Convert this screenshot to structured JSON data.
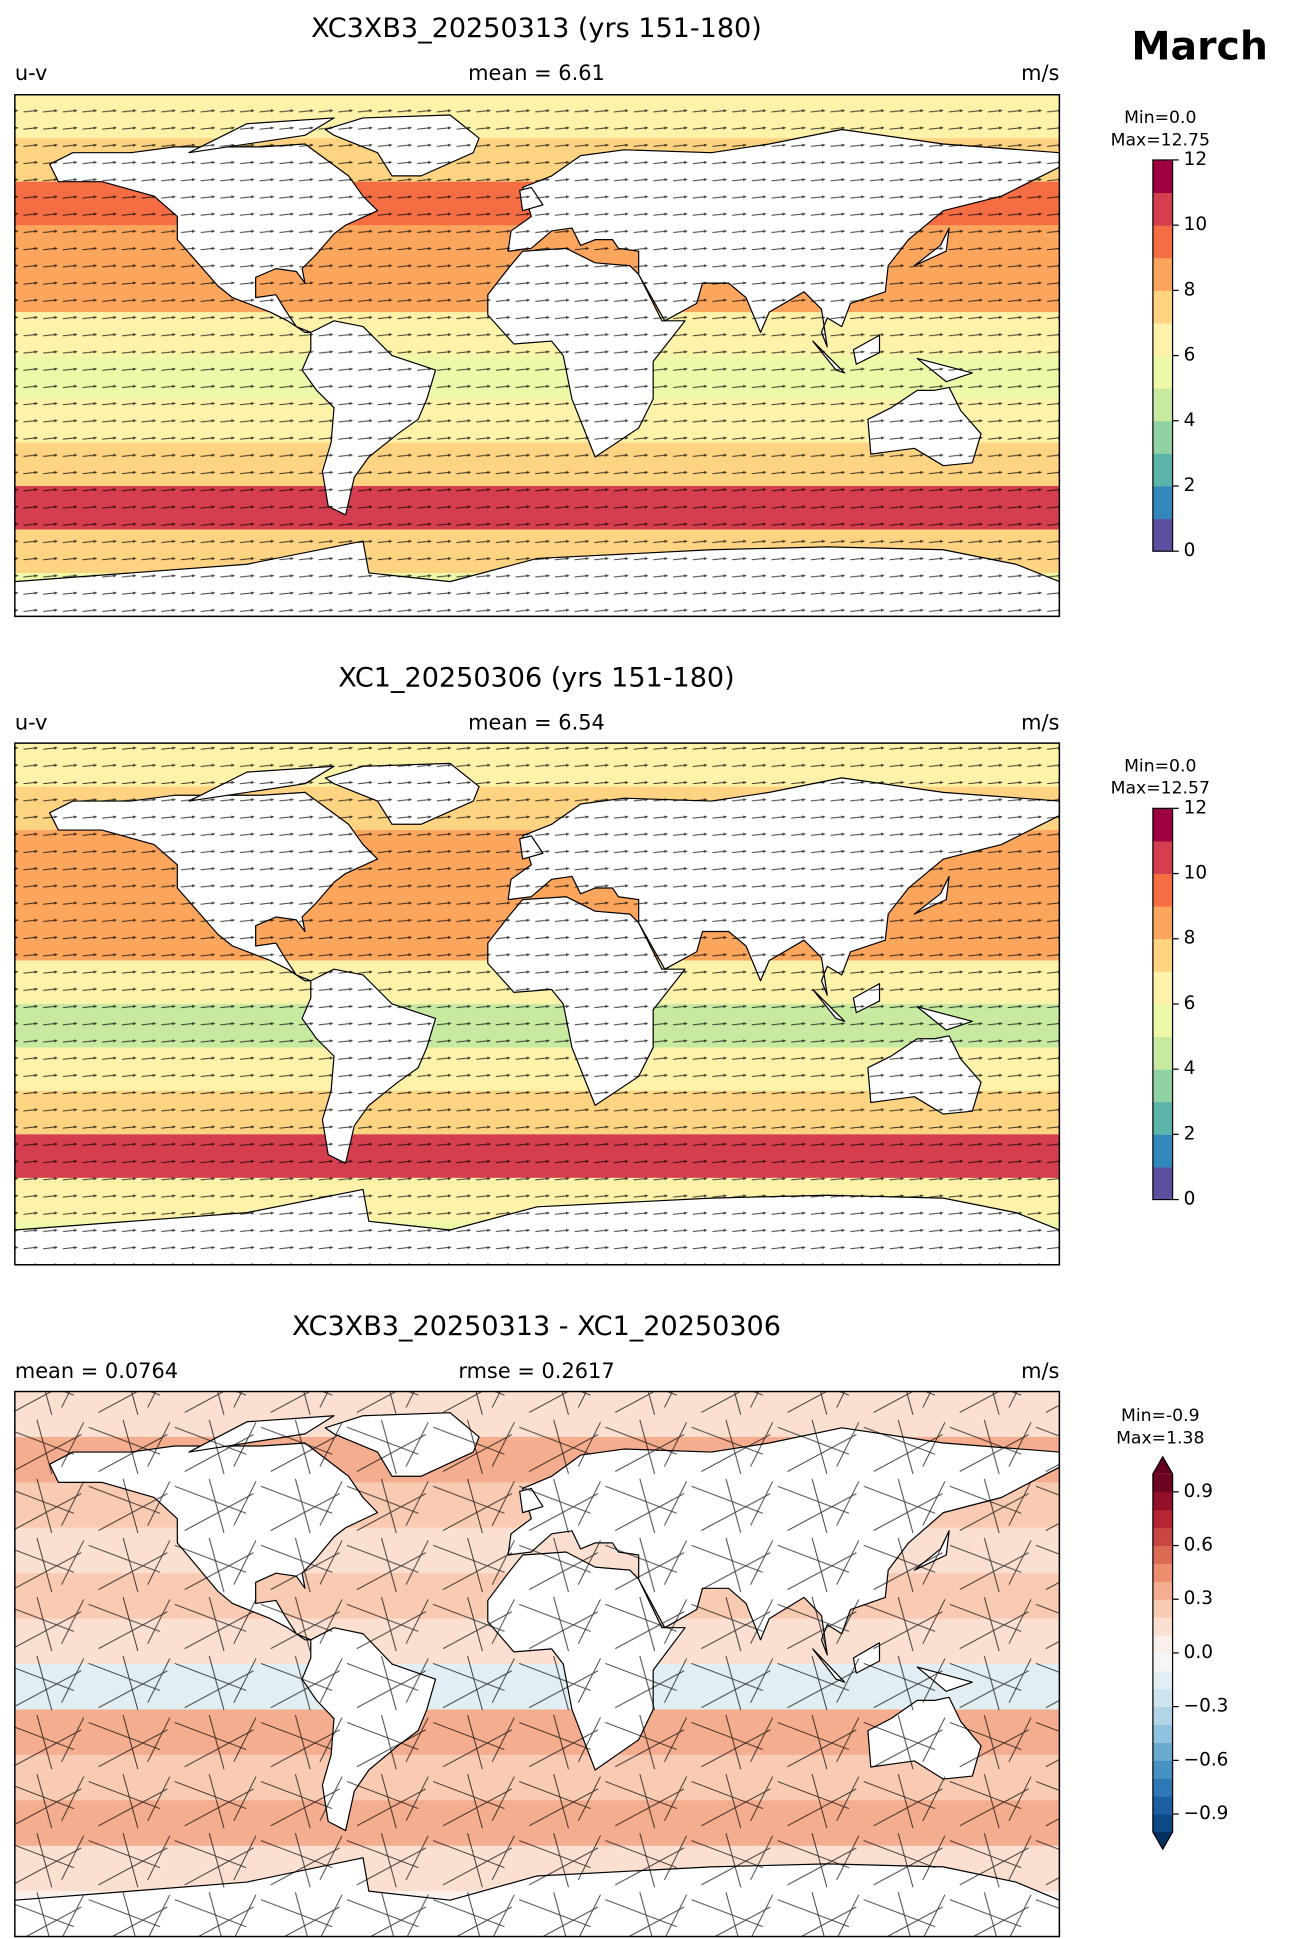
{
  "suptitle": "March",
  "chart_data": [
    {
      "type": "map",
      "title": "XC3XB3_20250313 (yrs 151-180)",
      "left_label": "u-v",
      "center_label": "mean = 6.61",
      "right_label": "m/s",
      "colorbar": {
        "min_label": "Min=0.0",
        "max_label": "Max=12.75",
        "clim": [
          0,
          12
        ],
        "ticks": [
          0,
          2,
          4,
          6,
          8,
          10,
          12
        ],
        "extend": "neither",
        "colors": [
          "#5e4fa2",
          "#3288bd",
          "#5bb4a9",
          "#8fd3a4",
          "#c7e9a0",
          "#eef8a9",
          "#fdf2a9",
          "#fed382",
          "#fca55d",
          "#f46d43",
          "#d53e4f",
          "#9e0142"
        ]
      },
      "field": {
        "lat_edges": [
          90,
          75,
          60,
          45,
          30,
          15,
          0,
          -15,
          -30,
          -45,
          -60,
          -75,
          -90
        ],
        "values": [
          6,
          7,
          9,
          8,
          8,
          6,
          5,
          6,
          7,
          10,
          7,
          5
        ]
      }
    },
    {
      "type": "map",
      "title": "XC1_20250306 (yrs 151-180)",
      "left_label": "u-v",
      "center_label": "mean = 6.54",
      "right_label": "m/s",
      "colorbar": {
        "min_label": "Min=0.0",
        "max_label": "Max=12.57",
        "clim": [
          0,
          12
        ],
        "ticks": [
          0,
          2,
          4,
          6,
          8,
          10,
          12
        ],
        "extend": "neither",
        "colors": [
          "#5e4fa2",
          "#3288bd",
          "#5bb4a9",
          "#8fd3a4",
          "#c7e9a0",
          "#eef8a9",
          "#fdf2a9",
          "#fed382",
          "#fca55d",
          "#f46d43",
          "#d53e4f",
          "#9e0142"
        ]
      },
      "field": {
        "lat_edges": [
          90,
          75,
          60,
          45,
          30,
          15,
          0,
          -15,
          -30,
          -45,
          -60,
          -75,
          -90
        ],
        "values": [
          6,
          7,
          8,
          8,
          8,
          6,
          4,
          6,
          7,
          10,
          6,
          5
        ]
      }
    },
    {
      "type": "map",
      "title": "XC3XB3_20250313 - XC1_20250306",
      "left_label": "mean = 0.0764",
      "center_label": "rmse = 0.2617",
      "right_label": "m/s",
      "colorbar": {
        "min_label": "Min=-0.9",
        "max_label": "Max=1.38",
        "clim": [
          -1,
          1
        ],
        "ticks": [
          {
            "value": -0.9,
            "label": "−0.9"
          },
          {
            "value": -0.6,
            "label": "−0.6"
          },
          {
            "value": -0.3,
            "label": "−0.3"
          },
          {
            "value": 0,
            "label": "0.0"
          },
          0.3,
          0.6,
          0.9
        ],
        "extend": "both",
        "under_color": "#053061",
        "over_color": "#67001f",
        "colors": [
          "#0d4a87",
          "#1c5fa3",
          "#2e78b5",
          "#4692c3",
          "#6aacd0",
          "#8fc2dd",
          "#b1d5e7",
          "#cde3ee",
          "#e3eef4",
          "#f4f6f7",
          "#f9f0eb",
          "#fbe0d1",
          "#f9cbb3",
          "#f5ad8f",
          "#ec8e6e",
          "#dc6b56",
          "#c84743",
          "#b52534",
          "#94102a",
          "#6d0420"
        ]
      },
      "field": {
        "lat_edges": [
          90,
          75,
          60,
          45,
          30,
          15,
          0,
          -15,
          -30,
          -45,
          -60,
          -75,
          -90
        ],
        "values": [
          0.1,
          0.3,
          0.2,
          0.1,
          0.2,
          0.1,
          -0.2,
          0.3,
          0.2,
          0.3,
          0.1,
          0
        ]
      }
    }
  ]
}
